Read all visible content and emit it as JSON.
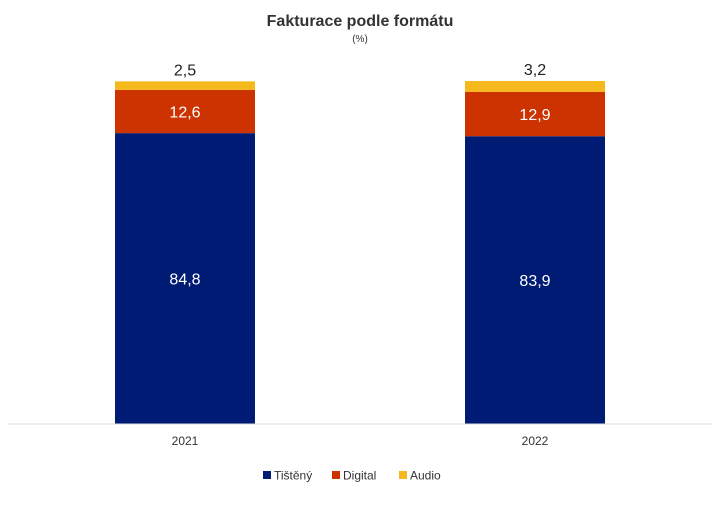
{
  "chart_data": {
    "type": "bar",
    "stacked": true,
    "title": "Fakturace podle formátu",
    "subtitle": "(%)",
    "categories": [
      "2021",
      "2022"
    ],
    "series": [
      {
        "name": "Tištěný",
        "color": "#001b73",
        "values": [
          84.8,
          83.9
        ],
        "labels": [
          "84,8",
          "83,9"
        ]
      },
      {
        "name": "Digital",
        "color": "#cc3300",
        "values": [
          12.6,
          12.9
        ],
        "labels": [
          "12,6",
          "12,9"
        ]
      },
      {
        "name": "Audio",
        "color": "#f5b91e",
        "values": [
          2.5,
          3.2
        ],
        "labels": [
          "2,5",
          "3,2"
        ]
      }
    ],
    "ylim": [
      0,
      100
    ],
    "grid": false,
    "legend_position": "bottom"
  }
}
